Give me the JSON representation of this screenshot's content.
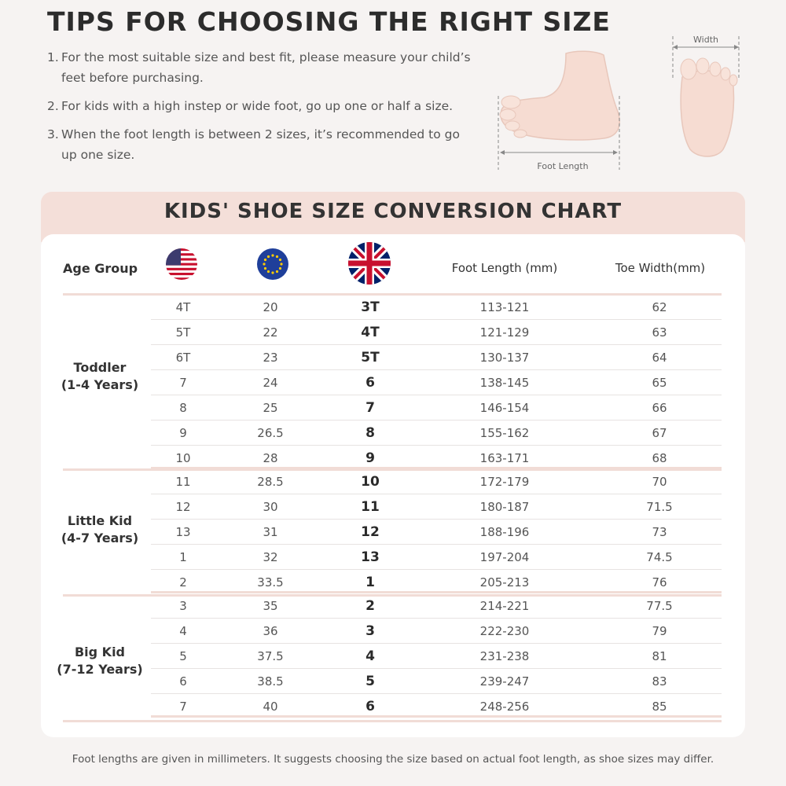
{
  "tips": {
    "title": "TIPS FOR CHOOSING THE RIGHT SIZE",
    "items": [
      {
        "num": "1.",
        "text": "For the most suitable size and best fit, please measure your child’s feet before purchasing."
      },
      {
        "num": "2.",
        "text": "For kids with a high instep or wide foot, go up one or half a size."
      },
      {
        "num": "3.",
        "text": "When the foot length is between 2 sizes, it’s recommended to go up one size."
      }
    ],
    "diagram": {
      "foot_length_label": "Foot Length",
      "width_label": "Width"
    }
  },
  "chart": {
    "title": "KIDS' SHOE SIZE CONVERSION CHART",
    "headers": {
      "age_group": "Age Group",
      "us_flag": "us-flag-icon",
      "eu_flag": "eu-flag-icon",
      "uk_flag": "uk-flag-icon",
      "foot_length": "Foot Length (mm)",
      "toe_width": "Toe Width(mm)"
    },
    "groups": [
      {
        "line1": "Toddler",
        "line2": "(1-4 Years)"
      },
      {
        "line1": "Little Kid",
        "line2": "(4-7 Years)"
      },
      {
        "line1": "Big Kid",
        "line2": "(7-12 Years)"
      }
    ],
    "rows": [
      {
        "us": "4T",
        "eu": "20",
        "uk": "3T",
        "len": "113-121",
        "toe": "62"
      },
      {
        "us": "5T",
        "eu": "22",
        "uk": "4T",
        "len": "121-129",
        "toe": "63"
      },
      {
        "us": "6T",
        "eu": "23",
        "uk": "5T",
        "len": "130-137",
        "toe": "64"
      },
      {
        "us": "7",
        "eu": "24",
        "uk": "6",
        "len": "138-145",
        "toe": "65"
      },
      {
        "us": "8",
        "eu": "25",
        "uk": "7",
        "len": "146-154",
        "toe": "66"
      },
      {
        "us": "9",
        "eu": "26.5",
        "uk": "8",
        "len": "155-162",
        "toe": "67"
      },
      {
        "us": "10",
        "eu": "28",
        "uk": "9",
        "len": "163-171",
        "toe": "68"
      },
      {
        "us": "11",
        "eu": "28.5",
        "uk": "10",
        "len": "172-179",
        "toe": "70"
      },
      {
        "us": "12",
        "eu": "30",
        "uk": "11",
        "len": "180-187",
        "toe": "71.5"
      },
      {
        "us": "13",
        "eu": "31",
        "uk": "12",
        "len": "188-196",
        "toe": "73"
      },
      {
        "us": "1",
        "eu": "32",
        "uk": "13",
        "len": "197-204",
        "toe": "74.5"
      },
      {
        "us": "2",
        "eu": "33.5",
        "uk": "1",
        "len": "205-213",
        "toe": "76"
      },
      {
        "us": "3",
        "eu": "35",
        "uk": "2",
        "len": "214-221",
        "toe": "77.5"
      },
      {
        "us": "4",
        "eu": "36",
        "uk": "3",
        "len": "222-230",
        "toe": "79"
      },
      {
        "us": "5",
        "eu": "37.5",
        "uk": "4",
        "len": "231-238",
        "toe": "81"
      },
      {
        "us": "6",
        "eu": "38.5",
        "uk": "5",
        "len": "239-247",
        "toe": "83"
      },
      {
        "us": "7",
        "eu": "40",
        "uk": "6",
        "len": "248-256",
        "toe": "85"
      }
    ],
    "footnote": "Foot lengths are given in millimeters. It suggests choosing the size based on actual foot length, as shoe sizes may differ."
  },
  "colors": {
    "background": "#f6f3f2",
    "header_band": "#f4dfd9",
    "group_rule": "#f1dcd6",
    "skin": "#f6dcd2"
  }
}
